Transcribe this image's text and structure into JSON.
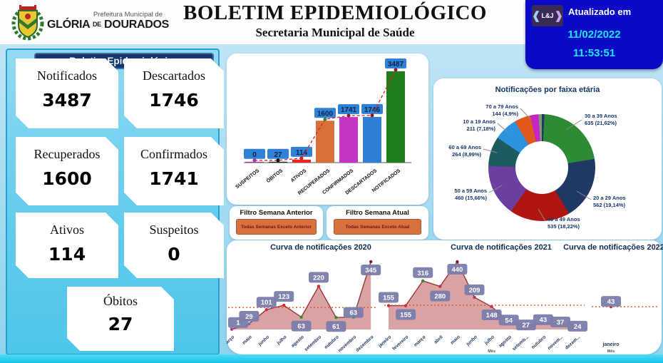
{
  "header": {
    "org_small": "Prefeitura Municipal de",
    "org_name_1": "GLÓRIA",
    "org_name_de": "DE",
    "org_name_2": "DOURADOS",
    "title": "BOLETIM EPIDEMIOLÓGICO",
    "subtitle": "Secretaria Municipal de Saúde",
    "updated": {
      "logo_text": "L&J",
      "label": "Atualizado em",
      "date": "11/02/2022",
      "time": "11:53:51"
    }
  },
  "panel": {
    "title": "Boletim Epidemiológico",
    "cards": [
      {
        "label": "Notificados",
        "value": "3487"
      },
      {
        "label": "Descartados",
        "value": "1746"
      },
      {
        "label": "Recuperados",
        "value": "1600"
      },
      {
        "label": "Confirmados",
        "value": "1741"
      },
      {
        "label": "Ativos",
        "value": "114"
      },
      {
        "label": "Suspeitos",
        "value": "0"
      },
      {
        "label": "Óbitos",
        "value": "27"
      }
    ]
  },
  "filters": [
    {
      "title": "Filtro Semana Anterior",
      "button": "Todas Semanas Exceto Anterior"
    },
    {
      "title": "Filtro Semana Atual",
      "button": "Todas Semanas Exceto Atual"
    }
  ],
  "chart_data": [
    {
      "type": "bar",
      "categories": [
        "SUSPEITOS",
        "ÓBITOS",
        "ATIVOS",
        "RECUPERADOS",
        "CONFIRMADOS",
        "DESCARTADOS",
        "NOTIFICADOS"
      ],
      "values": [
        0,
        27,
        114,
        1600,
        1741,
        1746,
        3487
      ],
      "bar_colors": [
        "#a03aa0",
        "#222222",
        "#e8251f",
        "#d9703a",
        "#c435c4",
        "#2f7fd6",
        "#1e7e1e"
      ],
      "value_label_box": "#2f81d8",
      "value_label_text": "#0c2545",
      "trend_line_color": "#e02020",
      "trend_dot_colors": [
        "#a03aa0",
        "#111111",
        "#d02020",
        "#2e8b2e",
        "#8b1a1a",
        "#8b1a1a",
        "#8b1a1a"
      ],
      "ylim": [
        0,
        3487
      ]
    },
    {
      "type": "pie",
      "title": "Notificações por faixa etária",
      "slices": [
        {
          "label": "",
          "detail": "",
          "percent": 0.79,
          "color": "#1f3864"
        },
        {
          "label": "30 a 39 Anos",
          "detail": "635 (21,62%)",
          "value": 635,
          "percent": 21.62,
          "color": "#2e8b35"
        },
        {
          "label": "20 a 29 Anos",
          "detail": "562 (19,14%)",
          "value": 562,
          "percent": 19.14,
          "color": "#1f3864"
        },
        {
          "label": "40 a 49 Anos",
          "detail": "535 (18,22%)",
          "value": 535,
          "percent": 18.22,
          "color": "#b11512"
        },
        {
          "label": "50 a 59 Anos",
          "detail": "460 (15,66%)",
          "value": 460,
          "percent": 15.66,
          "color": "#6b3fa0"
        },
        {
          "label": "60 a 69 Anos",
          "detail": "264 (8,99%)",
          "value": 264,
          "percent": 8.99,
          "color": "#1d5b5e"
        },
        {
          "label": "10 a 19 Anos",
          "detail": "211 (7,18%)",
          "value": 211,
          "percent": 7.18,
          "color": "#2d93e0"
        },
        {
          "label": "70 a 79 Anos",
          "detail": "144 (4,9%)",
          "value": 144,
          "percent": 4.9,
          "color": "#e2571b"
        },
        {
          "label": "",
          "detail": "",
          "percent": 2.5,
          "color": "#c425c4"
        },
        {
          "label": "",
          "detail": "",
          "percent": 1.0,
          "color": "#7d9b72"
        }
      ],
      "legend_position": "around"
    },
    {
      "type": "area",
      "title": "Curva de notificações 2020",
      "categories": [
        "março",
        "maio",
        "junho",
        "julho",
        "agosto",
        "setembro",
        "outubro",
        "novembro",
        "dezembro"
      ],
      "values": [
        1,
        29,
        101,
        123,
        63,
        220,
        61,
        63,
        345
      ],
      "mean": 112,
      "ymax": 345,
      "marker_colors": [
        "#c030a0",
        "#7a6ab0",
        "#c03050",
        "#d42a2a",
        "#2f8f2f",
        "#d42a2a",
        "#2f8f2f",
        "#2f8f2f",
        "#701c4e"
      ],
      "label_offsets": [
        -17,
        -18,
        -18,
        -20,
        5,
        -20,
        5,
        -14,
        4
      ],
      "xlabel": ""
    },
    {
      "type": "area",
      "title": "Curva de notificações 2021",
      "categories": [
        "janeiro",
        "fevereiro",
        "março",
        "abril",
        "maio",
        "junho",
        "julho",
        "agosto",
        "setemb...",
        "outubro",
        "novem...",
        "dezem..."
      ],
      "values": [
        155,
        155,
        316,
        280,
        440,
        209,
        148,
        54,
        27,
        43,
        37,
        24
      ],
      "mean": 157,
      "ymax": 440,
      "marker_colors": [
        "#d42a2a",
        "#d42a2a",
        "#2f8f2f",
        "#c03050",
        "#701c4e",
        "#c03050",
        "#c03050",
        "#c03050",
        "#c03050",
        "#c03050",
        "#c03050",
        "#c03050"
      ],
      "label_offsets": [
        -19,
        5,
        -19,
        6,
        3,
        -18,
        4,
        -9,
        -8,
        -12,
        -10,
        -7
      ],
      "xlabel": "Mês"
    },
    {
      "type": "area",
      "title": "Curva de notificações 2022",
      "categories": [
        "janeiro"
      ],
      "values": [
        43
      ],
      "mean": 43,
      "ymax": 128,
      "marker_colors": [
        "#e02020"
      ],
      "label_offsets": [
        -15
      ],
      "xlabel": "Mês"
    }
  ]
}
